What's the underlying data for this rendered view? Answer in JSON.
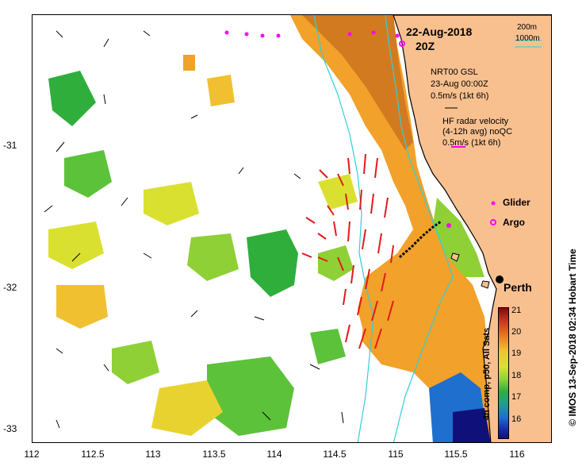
{
  "map": {
    "date": "22-Aug-2018",
    "time": "20Z",
    "x_ticks": [
      "112",
      "112.5",
      "113",
      "113.5",
      "114",
      "114.5",
      "115",
      "115.5",
      "116"
    ],
    "y_ticks": [
      "-31",
      "-32",
      "-33"
    ],
    "lon_range": [
      112,
      116.3
    ],
    "lat_range": [
      -33.1,
      -30.1
    ]
  },
  "legend": {
    "depth_200": "200m",
    "depth_1000": "1000m",
    "nrt_title": "NRT00 GSL",
    "nrt_date": "23-Aug 00:00Z",
    "nrt_scale": "0.5m/s (1kt 6h)",
    "hf_title": "HF radar velocity",
    "hf_subtitle": "(4-12h avg) noQC",
    "hf_scale": "0.5m/s (1kt 6h)",
    "glider": "Glider",
    "argo": "Argo",
    "city": "Perth"
  },
  "colorbar": {
    "ticks": [
      "21",
      "20",
      "19",
      "18",
      "17",
      "16"
    ],
    "caption": "4h comp, p50, All Sats"
  },
  "credit": "© IMOS 13-Sep-2018 02:34 Hobart Time",
  "colors": {
    "land": "#f9c08f",
    "coast": "#000000",
    "isobath": "#2fd0d8",
    "hf_arrow": "#e31a1c",
    "marker": "#ff00ff"
  }
}
